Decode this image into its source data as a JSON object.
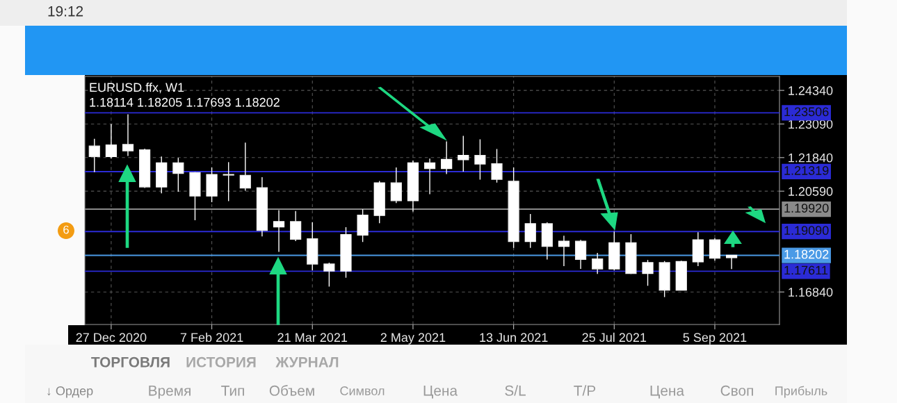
{
  "chart_data": {
    "type": "candlestick",
    "title": "EURUSD.ffx, W1",
    "subtitle": "1.18114 1.18205 1.17693 1.18202",
    "x": [
      "2020-12-20",
      "2020-12-27",
      "2021-01-03",
      "2021-01-10",
      "2021-01-17",
      "2021-01-24",
      "2021-01-31",
      "2021-02-07",
      "2021-02-14",
      "2021-02-21",
      "2021-02-28",
      "2021-03-07",
      "2021-03-14",
      "2021-03-21",
      "2021-03-28",
      "2021-04-04",
      "2021-04-11",
      "2021-04-18",
      "2021-04-25",
      "2021-05-02",
      "2021-05-09",
      "2021-05-16",
      "2021-05-23",
      "2021-05-30",
      "2021-06-06",
      "2021-06-13",
      "2021-06-20",
      "2021-06-27",
      "2021-07-04",
      "2021-07-11",
      "2021-07-18",
      "2021-07-25",
      "2021-08-01",
      "2021-08-08",
      "2021-08-15",
      "2021-08-22",
      "2021-08-29",
      "2021-09-05",
      "2021-09-12"
    ],
    "ohlc": [
      [
        1.2227,
        1.2254,
        1.213,
        1.2188
      ],
      [
        1.2188,
        1.2309,
        1.218,
        1.2231
      ],
      [
        1.2233,
        1.2345,
        1.219,
        1.2209
      ],
      [
        1.2213,
        1.2217,
        1.2071,
        1.2075
      ],
      [
        1.2075,
        1.2188,
        1.2051,
        1.2164
      ],
      [
        1.2164,
        1.2183,
        1.2057,
        1.2125
      ],
      [
        1.2128,
        1.213,
        1.1951,
        1.2041
      ],
      [
        1.2041,
        1.2147,
        1.2018,
        1.2121
      ],
      [
        1.2121,
        1.2167,
        1.2022,
        1.2119
      ],
      [
        1.2118,
        1.224,
        1.2061,
        1.2071
      ],
      [
        1.2072,
        1.2111,
        1.1891,
        1.1913
      ],
      [
        1.1926,
        1.1988,
        1.1833,
        1.1946
      ],
      [
        1.1946,
        1.1985,
        1.1873,
        1.188
      ],
      [
        1.1882,
        1.1944,
        1.1764,
        1.1788
      ],
      [
        1.1788,
        1.1793,
        1.1704,
        1.1762
      ],
      [
        1.1762,
        1.1925,
        1.1737,
        1.1897
      ],
      [
        1.1896,
        1.1992,
        1.187,
        1.197
      ],
      [
        1.1969,
        1.2097,
        1.194,
        1.209
      ],
      [
        1.209,
        1.2147,
        1.2015,
        1.2024
      ],
      [
        1.2024,
        1.2173,
        1.1983,
        1.2164
      ],
      [
        1.2164,
        1.218,
        1.2048,
        1.2143
      ],
      [
        1.2143,
        1.2244,
        1.2123,
        1.2177
      ],
      [
        1.2176,
        1.2265,
        1.2132,
        1.2192
      ],
      [
        1.2192,
        1.2252,
        1.2102,
        1.216
      ],
      [
        1.2161,
        1.2216,
        1.2091,
        1.2103
      ],
      [
        1.2096,
        1.2147,
        1.1848,
        1.1872
      ],
      [
        1.1872,
        1.1974,
        1.1848,
        1.1938
      ],
      [
        1.1938,
        1.1943,
        1.1805,
        1.1854
      ],
      [
        1.1854,
        1.1893,
        1.178,
        1.1873
      ],
      [
        1.1873,
        1.1878,
        1.177,
        1.1805
      ],
      [
        1.1807,
        1.1829,
        1.1751,
        1.177
      ],
      [
        1.177,
        1.1909,
        1.1764,
        1.1867
      ],
      [
        1.1867,
        1.1899,
        1.1751,
        1.1753
      ],
      [
        1.1753,
        1.1803,
        1.1707,
        1.1793
      ],
      [
        1.1793,
        1.1799,
        1.1665,
        1.1691
      ],
      [
        1.1691,
        1.18,
        1.1691,
        1.1797
      ],
      [
        1.1796,
        1.1906,
        1.178,
        1.1878
      ],
      [
        1.1878,
        1.1884,
        1.1801,
        1.181
      ],
      [
        1.18114,
        1.18205,
        1.17693,
        1.18202
      ]
    ],
    "color": "#ffffff",
    "xlim": [
      "2020-12-16",
      "2021-10-02"
    ],
    "xticks": [
      {
        "value": "2020-12-27",
        "label": "27 Dec 2020"
      },
      {
        "value": "2021-02-07",
        "label": "7 Feb 2021"
      },
      {
        "value": "2021-03-21",
        "label": "21 Mar 2021"
      },
      {
        "value": "2021-05-02",
        "label": "2 May 2021"
      },
      {
        "value": "2021-06-13",
        "label": "13 Jun 2021"
      },
      {
        "value": "2021-07-25",
        "label": "25 Jul 2021"
      },
      {
        "value": "2021-09-05",
        "label": "5 Sep 2021"
      }
    ],
    "ylim": [
      1.1563,
      1.2486
    ],
    "yticks": [
      {
        "value": 1.2434,
        "label": "1.24340"
      },
      {
        "value": 1.2309,
        "label": "1.23090"
      },
      {
        "value": 1.2184,
        "label": "1.21840"
      },
      {
        "value": 1.2059,
        "label": "1.20590"
      },
      {
        "value": 1.1684,
        "label": "1.16840"
      }
    ],
    "grid": true,
    "ref_lines": [
      {
        "axis": "y",
        "value": 1.23506,
        "label": "1.23506",
        "color": "#2b2bd6"
      },
      {
        "axis": "y",
        "value": 1.21319,
        "label": "1.21319",
        "color": "#2b2bd6"
      },
      {
        "axis": "y",
        "value": 1.1992,
        "label": "1.19920",
        "color": "#8a8a8a"
      },
      {
        "axis": "y",
        "value": 1.1909,
        "label": "1.19090",
        "color": "#2b2bd6"
      },
      {
        "axis": "y",
        "value": 1.18202,
        "label": "1.18202",
        "color": "#4a9ae6"
      },
      {
        "axis": "y",
        "value": 1.17611,
        "label": "1.17611",
        "color": "#2b2bd6"
      }
    ],
    "annotations": [
      "19:12",
      "6",
      "ТОРГОВЛЯ",
      "ИСТОРИЯ",
      "ЖУРНАЛ",
      "↓ Ордер",
      "Время",
      "Тип",
      "Объем",
      "Символ",
      "Цена",
      "S/L",
      "T/P",
      "Цена",
      "Своп",
      "Прибыль"
    ]
  }
}
